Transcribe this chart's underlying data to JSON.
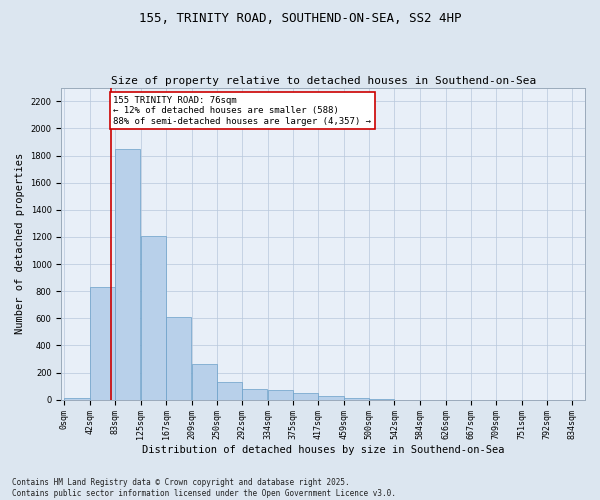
{
  "title1": "155, TRINITY ROAD, SOUTHEND-ON-SEA, SS2 4HP",
  "title2": "Size of property relative to detached houses in Southend-on-Sea",
  "xlabel": "Distribution of detached houses by size in Southend-on-Sea",
  "ylabel": "Number of detached properties",
  "bar_labels": [
    "0sqm",
    "42sqm",
    "83sqm",
    "125sqm",
    "167sqm",
    "209sqm",
    "250sqm",
    "292sqm",
    "334sqm",
    "375sqm",
    "417sqm",
    "459sqm",
    "500sqm",
    "542sqm",
    "584sqm",
    "626sqm",
    "667sqm",
    "709sqm",
    "751sqm",
    "792sqm",
    "834sqm"
  ],
  "bar_values": [
    15,
    830,
    1850,
    1210,
    610,
    260,
    130,
    80,
    75,
    50,
    25,
    10,
    5,
    0,
    0,
    0,
    0,
    0,
    0,
    0
  ],
  "bar_width": 41.5,
  "bar_starts": [
    0,
    42,
    83,
    125,
    167,
    209,
    250,
    292,
    334,
    375,
    417,
    459,
    500,
    542,
    584,
    626,
    667,
    709,
    751,
    792
  ],
  "bar_color": "#b8d0ea",
  "bar_edge_color": "#6a9fc8",
  "property_size": 76,
  "vline_color": "#cc0000",
  "annotation_text": "155 TRINITY ROAD: 76sqm\n← 12% of detached houses are smaller (588)\n88% of semi-detached houses are larger (4,357) →",
  "annotation_box_color": "#ffffff",
  "annotation_box_edge": "#cc0000",
  "ylim": [
    0,
    2300
  ],
  "yticks": [
    0,
    200,
    400,
    600,
    800,
    1000,
    1200,
    1400,
    1600,
    1800,
    2000,
    2200
  ],
  "bg_color": "#dce6f0",
  "plot_bg_color": "#e8eff8",
  "footer": "Contains HM Land Registry data © Crown copyright and database right 2025.\nContains public sector information licensed under the Open Government Licence v3.0.",
  "title1_fontsize": 9,
  "title2_fontsize": 8,
  "tick_fontsize": 6,
  "ylabel_fontsize": 7.5,
  "xlabel_fontsize": 7.5,
  "annot_fontsize": 6.5,
  "footer_fontsize": 5.5
}
